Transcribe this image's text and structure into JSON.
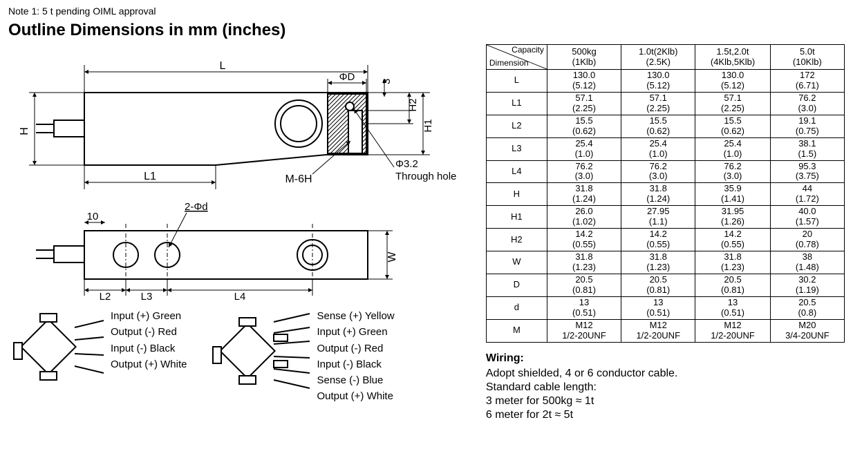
{
  "note": "Note 1: 5 t pending OIML approval",
  "title": "Outline Dimensions in mm (inches)",
  "drawing_labels": {
    "L": "L",
    "L1": "L1",
    "L2": "L2",
    "L3": "L3",
    "L4": "L4",
    "H": "H",
    "H1": "H1",
    "H2": "H2",
    "W": "W",
    "phiD": "ΦD",
    "three": "3",
    "M6H": "M-6H",
    "through": "Φ3.2\nThrough hole",
    "holes2d": "2-Φd",
    "ten": "10"
  },
  "table": {
    "corner": {
      "capacity": "Capacity",
      "dimension": "Dimension"
    },
    "capacities": [
      {
        "top": "500kg",
        "bot": "(1Klb)"
      },
      {
        "top": "1.0t(2Klb)",
        "bot": "(2.5K)"
      },
      {
        "top": "1.5t,2.0t",
        "bot": "(4Klb,5Klb)"
      },
      {
        "top": "5.0t",
        "bot": "(10Klb)"
      }
    ],
    "rows": [
      {
        "label": "L",
        "cells": [
          [
            "130.0",
            "(5.12)"
          ],
          [
            "130.0",
            "(5.12)"
          ],
          [
            "130.0",
            "(5.12)"
          ],
          [
            "172",
            "(6.71)"
          ]
        ]
      },
      {
        "label": "L1",
        "cells": [
          [
            "57.1",
            "(2.25)"
          ],
          [
            "57.1",
            "(2.25)"
          ],
          [
            "57.1",
            "(2.25)"
          ],
          [
            "76.2",
            "(3.0)"
          ]
        ]
      },
      {
        "label": "L2",
        "cells": [
          [
            "15.5",
            "(0.62)"
          ],
          [
            "15.5",
            "(0.62)"
          ],
          [
            "15.5",
            "(0.62)"
          ],
          [
            "19.1",
            "(0.75)"
          ]
        ]
      },
      {
        "label": "L3",
        "cells": [
          [
            "25.4",
            "(1.0)"
          ],
          [
            "25.4",
            "(1.0)"
          ],
          [
            "25.4",
            "(1.0)"
          ],
          [
            "38.1",
            "(1.5)"
          ]
        ]
      },
      {
        "label": "L4",
        "cells": [
          [
            "76.2",
            "(3.0)"
          ],
          [
            "76.2",
            "(3.0)"
          ],
          [
            "76.2",
            "(3.0)"
          ],
          [
            "95.3",
            "(3.75)"
          ]
        ]
      },
      {
        "label": "H",
        "cells": [
          [
            "31.8",
            "(1.24)"
          ],
          [
            "31.8",
            "(1.24)"
          ],
          [
            "35.9",
            "(1.41)"
          ],
          [
            "44",
            "(1.72)"
          ]
        ]
      },
      {
        "label": "H1",
        "cells": [
          [
            "26.0",
            "(1.02)"
          ],
          [
            "27.95",
            "(1.1)"
          ],
          [
            "31.95",
            "(1.26)"
          ],
          [
            "40.0",
            "(1.57)"
          ]
        ]
      },
      {
        "label": "H2",
        "cells": [
          [
            "14.2",
            "(0.55)"
          ],
          [
            "14.2",
            "(0.55)"
          ],
          [
            "14.2",
            "(0.55)"
          ],
          [
            "20",
            "(0.78)"
          ]
        ]
      },
      {
        "label": "W",
        "cells": [
          [
            "31.8",
            "(1.23)"
          ],
          [
            "31.8",
            "(1.23)"
          ],
          [
            "31.8",
            "(1.23)"
          ],
          [
            "38",
            "(1.48)"
          ]
        ]
      },
      {
        "label": "D",
        "cells": [
          [
            "20.5",
            "(0.81)"
          ],
          [
            "20.5",
            "(0.81)"
          ],
          [
            "20.5",
            "(0.81)"
          ],
          [
            "30.2",
            "(1.19)"
          ]
        ]
      },
      {
        "label": "d",
        "cells": [
          [
            "13",
            "(0.51)"
          ],
          [
            "13",
            "(0.51)"
          ],
          [
            "13",
            "(0.51)"
          ],
          [
            "20.5",
            "(0.8)"
          ]
        ]
      },
      {
        "label": "M",
        "cells": [
          [
            "M12",
            "1/2-20UNF"
          ],
          [
            "M12",
            "1/2-20UNF"
          ],
          [
            "M12",
            "1/2-20UNF"
          ],
          [
            "M20",
            "3/4-20UNF"
          ]
        ]
      }
    ]
  },
  "wiring": {
    "title": "Wiring:",
    "lines": [
      "Adopt shielded, 4 or 6 conductor cable.",
      "Standard cable length:",
      "3 meter for 500kg ≈ 1t",
      "6 meter for 2t ≈ 5t"
    ]
  },
  "wire4": {
    "labels": [
      "Input (+) Green",
      "Output (-) Red",
      "Input (-) Black",
      "Output (+) White"
    ]
  },
  "wire6": {
    "labels": [
      "Sense (+) Yellow",
      "Input (+) Green",
      "Output (-) Red",
      "Input (-) Black",
      "Sense (-) Blue",
      "Output (+) White"
    ]
  },
  "colors": {
    "stroke": "#000000",
    "fill": "#ffffff",
    "hatch": "#000000"
  }
}
